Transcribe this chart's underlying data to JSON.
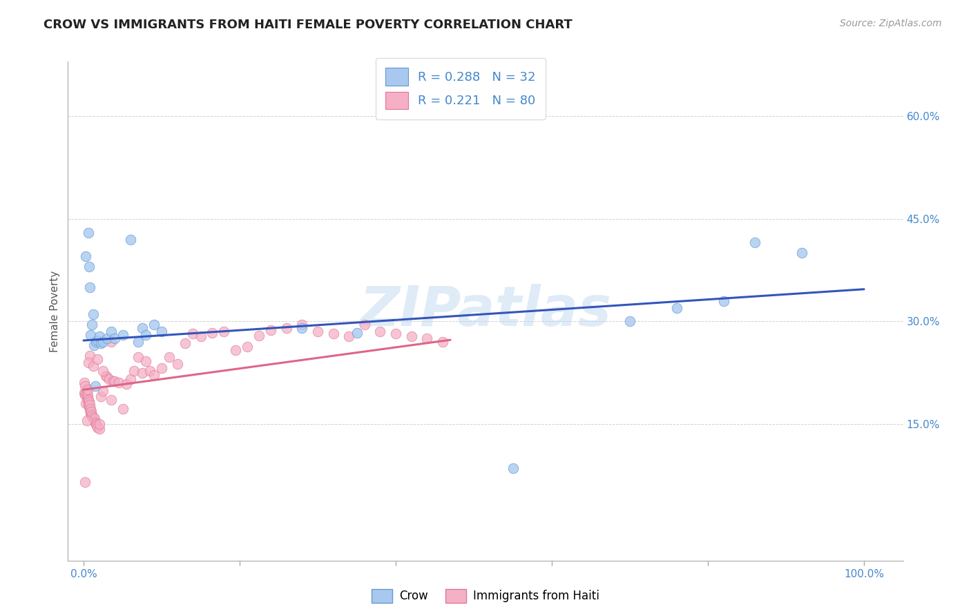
{
  "title": "CROW VS IMMIGRANTS FROM HAITI FEMALE POVERTY CORRELATION CHART",
  "source": "Source: ZipAtlas.com",
  "ylabel": "Female Poverty",
  "ytick_vals": [
    0.15,
    0.3,
    0.45,
    0.6
  ],
  "ytick_labels": [
    "15.0%",
    "30.0%",
    "45.0%",
    "60.0%"
  ],
  "xtick_vals": [
    0.0,
    1.0
  ],
  "xtick_labels": [
    "0.0%",
    "100.0%"
  ],
  "xlim": [
    -0.02,
    1.05
  ],
  "ylim": [
    -0.05,
    0.68
  ],
  "crow_color": "#a8c8f0",
  "crow_edge": "#6699cc",
  "haiti_color": "#f5b0c5",
  "haiti_edge": "#dd7799",
  "blue_line_color": "#3355bb",
  "pink_line_color": "#dd6688",
  "watermark": "ZIPatlas",
  "background_color": "#ffffff",
  "grid_color": "#cccccc",
  "tick_color": "#4488cc",
  "title_color": "#222222",
  "ylabel_color": "#555555",
  "source_color": "#999999",
  "crow_x": [
    0.003,
    0.006,
    0.007,
    0.008,
    0.009,
    0.011,
    0.012,
    0.013,
    0.015,
    0.016,
    0.018,
    0.02,
    0.022,
    0.025,
    0.03,
    0.035,
    0.04,
    0.05,
    0.06,
    0.07,
    0.075,
    0.08,
    0.09,
    0.1,
    0.28,
    0.35,
    0.55,
    0.7,
    0.76,
    0.82,
    0.86,
    0.92
  ],
  "crow_y": [
    0.395,
    0.43,
    0.38,
    0.35,
    0.28,
    0.295,
    0.31,
    0.265,
    0.205,
    0.27,
    0.272,
    0.278,
    0.268,
    0.27,
    0.275,
    0.285,
    0.275,
    0.28,
    0.42,
    0.27,
    0.29,
    0.28,
    0.295,
    0.285,
    0.29,
    0.283,
    0.085,
    0.3,
    0.32,
    0.33,
    0.415,
    0.4
  ],
  "haiti_x": [
    0.001,
    0.001,
    0.002,
    0.002,
    0.003,
    0.003,
    0.004,
    0.004,
    0.005,
    0.005,
    0.005,
    0.006,
    0.006,
    0.007,
    0.007,
    0.008,
    0.008,
    0.009,
    0.009,
    0.01,
    0.01,
    0.011,
    0.012,
    0.013,
    0.014,
    0.015,
    0.016,
    0.017,
    0.018,
    0.02,
    0.02,
    0.022,
    0.025,
    0.028,
    0.03,
    0.033,
    0.035,
    0.038,
    0.04,
    0.045,
    0.05,
    0.055,
    0.06,
    0.065,
    0.07,
    0.075,
    0.08,
    0.085,
    0.09,
    0.1,
    0.11,
    0.12,
    0.13,
    0.14,
    0.15,
    0.165,
    0.18,
    0.195,
    0.21,
    0.225,
    0.24,
    0.26,
    0.28,
    0.3,
    0.32,
    0.34,
    0.36,
    0.38,
    0.4,
    0.42,
    0.44,
    0.46,
    0.008,
    0.006,
    0.012,
    0.018,
    0.025,
    0.035,
    0.004,
    0.002
  ],
  "haiti_y": [
    0.195,
    0.21,
    0.192,
    0.205,
    0.195,
    0.18,
    0.19,
    0.198,
    0.185,
    0.192,
    0.2,
    0.178,
    0.185,
    0.175,
    0.182,
    0.17,
    0.178,
    0.165,
    0.172,
    0.162,
    0.168,
    0.163,
    0.16,
    0.155,
    0.158,
    0.152,
    0.15,
    0.148,
    0.145,
    0.143,
    0.15,
    0.19,
    0.198,
    0.22,
    0.218,
    0.215,
    0.27,
    0.212,
    0.212,
    0.21,
    0.172,
    0.208,
    0.215,
    0.228,
    0.248,
    0.225,
    0.242,
    0.228,
    0.222,
    0.232,
    0.248,
    0.238,
    0.268,
    0.282,
    0.278,
    0.283,
    0.285,
    0.258,
    0.263,
    0.279,
    0.287,
    0.29,
    0.295,
    0.285,
    0.282,
    0.278,
    0.295,
    0.285,
    0.282,
    0.278,
    0.275,
    0.27,
    0.25,
    0.24,
    0.235,
    0.245,
    0.228,
    0.185,
    0.155,
    0.065
  ],
  "legend1_label": "R = 0.288   N = 32",
  "legend2_label": "R = 0.221   N = 80",
  "bottom_legend1": "Crow",
  "bottom_legend2": "Immigrants from Haiti"
}
